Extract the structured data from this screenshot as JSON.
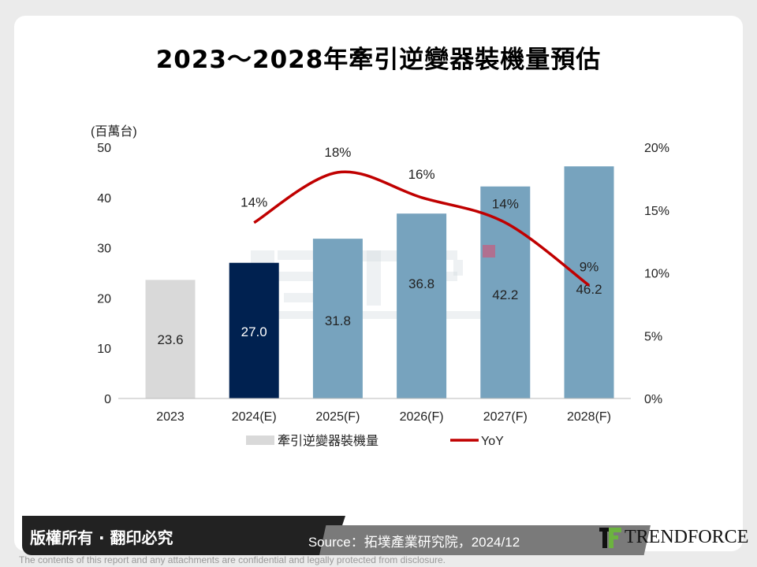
{
  "title": "2023～2028年牽引逆變器裝機量預估",
  "chart_data": {
    "type": "bar",
    "categories": [
      "2023",
      "2024(E)",
      "2025(F)",
      "2026(F)",
      "2027(F)",
      "2028(F)"
    ],
    "series": [
      {
        "name": "牽引逆變器裝機量",
        "type": "bar",
        "axis": "left",
        "values": [
          23.6,
          27.0,
          31.8,
          36.8,
          42.2,
          46.2
        ],
        "labels": [
          "23.6",
          "27.0",
          "31.8",
          "36.8",
          "42.2",
          "46.2"
        ],
        "colors": [
          "#d9d9d9",
          "#002150",
          "#77a3be",
          "#77a3be",
          "#77a3be",
          "#77a3be"
        ]
      },
      {
        "name": "YoY",
        "type": "line",
        "axis": "right",
        "values": [
          null,
          14,
          18,
          16,
          14,
          9
        ],
        "labels": [
          "",
          "14%",
          "18%",
          "16%",
          "14%",
          "9%"
        ],
        "color": "#c00000"
      }
    ],
    "ylabel": "(百萬台)",
    "ylim": [
      0,
      50
    ],
    "yticks": [
      "0",
      "10",
      "20",
      "30",
      "40",
      "50"
    ],
    "y2lim": [
      0,
      20
    ],
    "y2ticks": [
      "0%",
      "5%",
      "10%",
      "15%",
      "20%"
    ],
    "legend": "bottom",
    "grid": false
  },
  "watermark": "拓墣 TRi TOPOLOGY RESEARCH INSTITUTE",
  "footer": {
    "copyright": "版權所有 · 翻印必究",
    "source": "Source：拓墣產業研究院，2024/12",
    "logo": "TRENDFORCE",
    "disclaimer": "The contents of this report and any attachments are confidential and legally protected from disclosure."
  }
}
